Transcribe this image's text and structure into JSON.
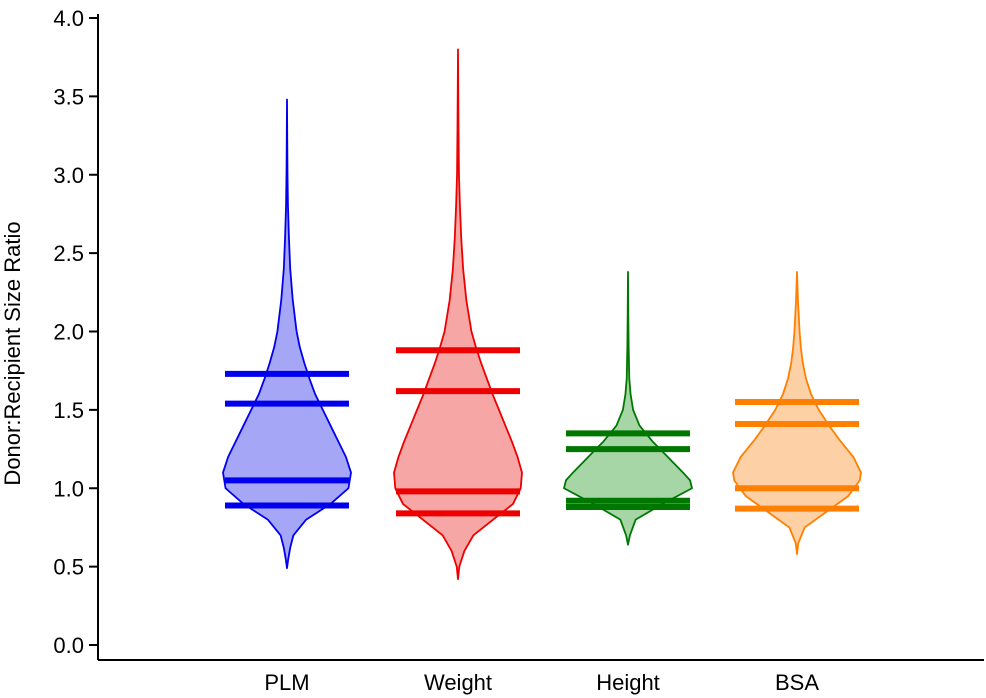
{
  "chart_data": {
    "type": "violin",
    "ylabel": "Donor:Recipient Size Ratio",
    "xlabel": "",
    "ylim": [
      0,
      4.0
    ],
    "yticks": [
      "0.0",
      "0.5",
      "1.0",
      "1.5",
      "2.0",
      "2.5",
      "3.0",
      "3.5",
      "4.0"
    ],
    "categories": [
      "PLM",
      "Weight",
      "Height",
      "BSA"
    ],
    "grid": false,
    "legend": "none",
    "series": [
      {
        "category": "PLM",
        "color": "#0000ee",
        "fill": "#a6a6f7",
        "lines": [
          0.89,
          1.05,
          1.54,
          1.73
        ],
        "range": [
          0.49,
          3.48
        ],
        "density": [
          [
            0.49,
            0.0
          ],
          [
            0.55,
            0.02
          ],
          [
            0.62,
            0.05
          ],
          [
            0.7,
            0.1
          ],
          [
            0.8,
            0.3
          ],
          [
            0.9,
            0.68
          ],
          [
            1.0,
            0.96
          ],
          [
            1.1,
            1.0
          ],
          [
            1.2,
            0.92
          ],
          [
            1.3,
            0.8
          ],
          [
            1.4,
            0.68
          ],
          [
            1.5,
            0.56
          ],
          [
            1.6,
            0.44
          ],
          [
            1.7,
            0.35
          ],
          [
            1.8,
            0.27
          ],
          [
            1.9,
            0.2
          ],
          [
            2.0,
            0.15
          ],
          [
            2.2,
            0.09
          ],
          [
            2.4,
            0.05
          ],
          [
            2.6,
            0.03
          ],
          [
            2.8,
            0.015
          ],
          [
            3.0,
            0.008
          ],
          [
            3.2,
            0.004
          ],
          [
            3.48,
            0.0
          ]
        ]
      },
      {
        "category": "Weight",
        "color": "#ee0000",
        "fill": "#f7a6a6",
        "lines": [
          0.84,
          0.98,
          1.62,
          1.88
        ],
        "range": [
          0.42,
          3.8
        ],
        "density": [
          [
            0.42,
            0.0
          ],
          [
            0.5,
            0.02
          ],
          [
            0.6,
            0.1
          ],
          [
            0.7,
            0.24
          ],
          [
            0.8,
            0.55
          ],
          [
            0.9,
            0.86
          ],
          [
            1.0,
            0.98
          ],
          [
            1.1,
            1.0
          ],
          [
            1.2,
            0.93
          ],
          [
            1.3,
            0.84
          ],
          [
            1.4,
            0.74
          ],
          [
            1.5,
            0.64
          ],
          [
            1.6,
            0.54
          ],
          [
            1.7,
            0.45
          ],
          [
            1.8,
            0.36
          ],
          [
            1.9,
            0.28
          ],
          [
            2.0,
            0.21
          ],
          [
            2.2,
            0.13
          ],
          [
            2.4,
            0.08
          ],
          [
            2.6,
            0.05
          ],
          [
            2.8,
            0.03
          ],
          [
            3.0,
            0.015
          ],
          [
            3.3,
            0.008
          ],
          [
            3.6,
            0.003
          ],
          [
            3.8,
            0.0
          ]
        ]
      },
      {
        "category": "Height",
        "color": "#007700",
        "fill": "#a6d6a6",
        "lines": [
          0.88,
          0.92,
          1.25,
          1.35
        ],
        "range": [
          0.64,
          2.38
        ],
        "density": [
          [
            0.64,
            0.0
          ],
          [
            0.7,
            0.03
          ],
          [
            0.8,
            0.12
          ],
          [
            0.9,
            0.54
          ],
          [
            1.0,
            1.0
          ],
          [
            1.05,
            0.97
          ],
          [
            1.1,
            0.86
          ],
          [
            1.2,
            0.62
          ],
          [
            1.3,
            0.38
          ],
          [
            1.4,
            0.18
          ],
          [
            1.5,
            0.08
          ],
          [
            1.6,
            0.04
          ],
          [
            1.7,
            0.02
          ],
          [
            1.9,
            0.01
          ],
          [
            2.1,
            0.005
          ],
          [
            2.38,
            0.0
          ]
        ]
      },
      {
        "category": "BSA",
        "color": "#ff8000",
        "fill": "#fdd0a6",
        "lines": [
          0.87,
          1.0,
          1.41,
          1.55
        ],
        "range": [
          0.58,
          2.38
        ],
        "density": [
          [
            0.58,
            0.0
          ],
          [
            0.65,
            0.02
          ],
          [
            0.75,
            0.12
          ],
          [
            0.85,
            0.46
          ],
          [
            0.95,
            0.8
          ],
          [
            1.05,
            0.98
          ],
          [
            1.1,
            1.0
          ],
          [
            1.2,
            0.88
          ],
          [
            1.3,
            0.68
          ],
          [
            1.4,
            0.5
          ],
          [
            1.5,
            0.34
          ],
          [
            1.6,
            0.22
          ],
          [
            1.7,
            0.14
          ],
          [
            1.8,
            0.09
          ],
          [
            1.9,
            0.06
          ],
          [
            2.0,
            0.04
          ],
          [
            2.2,
            0.015
          ],
          [
            2.38,
            0.0
          ]
        ]
      }
    ]
  }
}
